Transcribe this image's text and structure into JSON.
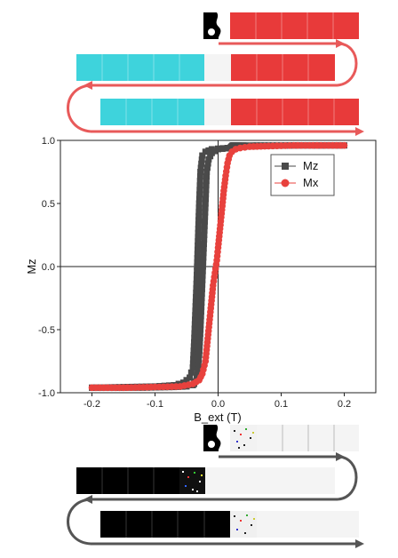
{
  "chart_data": {
    "type": "scatter",
    "xlabel": "B_ext (T)",
    "ylabel": "Mz",
    "xlim": [
      -0.25,
      0.25
    ],
    "ylim": [
      -1.0,
      1.0
    ],
    "xticks": [
      "-0.2",
      "-0.1",
      "0.0",
      "0.1",
      "0.2"
    ],
    "yticks": [
      "-1.0",
      "-0.5",
      "0.0",
      "0.5",
      "1.0"
    ],
    "legend_position": "top-right",
    "grid": false,
    "series": [
      {
        "name": "Mz",
        "marker": "square",
        "color": "#4a4a4a",
        "x": [
          -0.2,
          -0.15,
          -0.1,
          -0.07,
          -0.055,
          -0.045,
          -0.04,
          -0.038,
          -0.036,
          -0.034,
          -0.032,
          -0.03,
          -0.028,
          -0.025,
          -0.02,
          -0.01,
          0.0,
          0.015,
          0.02,
          0.021,
          0.022,
          0.023,
          0.024,
          0.025,
          0.026,
          0.028,
          0.03,
          0.033,
          0.036,
          0.04,
          0.045,
          0.055,
          0.08,
          0.12,
          0.2,
          0.12,
          0.07,
          0.04,
          0.02,
          0.0,
          -0.01,
          -0.015,
          -0.018,
          -0.02,
          -0.022,
          -0.024,
          -0.026,
          -0.028,
          -0.03,
          -0.032,
          -0.034,
          -0.036,
          -0.038,
          -0.04,
          -0.05,
          -0.07,
          -0.12,
          -0.2
        ],
        "y": [
          -0.96,
          -0.955,
          -0.95,
          -0.94,
          -0.92,
          -0.88,
          -0.8,
          -0.6,
          -0.35,
          -0.1,
          0.2,
          0.5,
          0.75,
          0.88,
          0.91,
          0.93,
          0.935,
          0.94,
          0.945,
          0.95,
          0.955,
          0.96,
          0.96,
          0.96,
          0.96,
          0.96,
          0.96,
          0.96,
          0.96,
          0.96,
          0.96,
          0.96,
          0.96,
          0.96,
          0.96,
          0.96,
          0.955,
          0.95,
          0.94,
          0.93,
          0.9,
          0.85,
          0.75,
          0.5,
          0.25,
          0.0,
          -0.25,
          -0.5,
          -0.7,
          -0.82,
          -0.88,
          -0.91,
          -0.93,
          -0.94,
          -0.95,
          -0.955,
          -0.96,
          -0.96
        ],
        "note_points": "hysteresis loop"
      },
      {
        "name": "Mx",
        "marker": "circle",
        "color": "#e8413d",
        "x": [
          -0.2,
          -0.15,
          -0.1,
          -0.06,
          -0.04,
          -0.03,
          -0.025,
          -0.02,
          -0.017,
          -0.014,
          -0.011,
          -0.008,
          -0.005,
          -0.002,
          0.0,
          0.003,
          0.006,
          0.009,
          0.012,
          0.015,
          0.018,
          0.022,
          0.028,
          0.035,
          0.05,
          0.08,
          0.12,
          0.2
        ],
        "y": [
          -0.96,
          -0.96,
          -0.955,
          -0.95,
          -0.93,
          -0.9,
          -0.85,
          -0.75,
          -0.6,
          -0.45,
          -0.3,
          -0.15,
          -0.05,
          0.05,
          0.15,
          0.3,
          0.45,
          0.6,
          0.72,
          0.82,
          0.88,
          0.91,
          0.93,
          0.94,
          0.95,
          0.955,
          0.96,
          0.96
        ]
      }
    ]
  }
}
